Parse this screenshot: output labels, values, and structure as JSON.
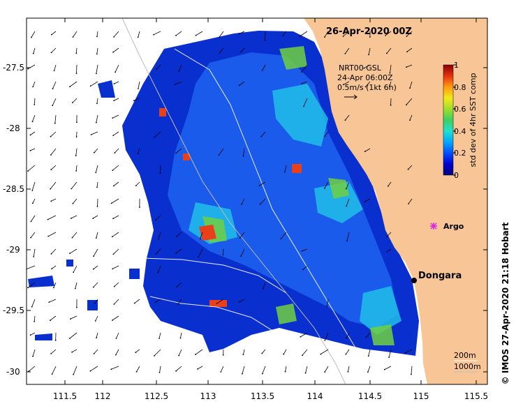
{
  "title": "26-Apr-2020 00Z",
  "legend": {
    "line1": "NRT00 GSL",
    "line2": "24-Apr 06:00Z",
    "line3": "0.5m/s (1kt 6h)"
  },
  "colorbar": {
    "label": "std dev of 4hr SST comp",
    "ticks": [
      "0",
      "0.2",
      "0.4",
      "0.6",
      "0.8",
      "1"
    ],
    "colors": [
      "#00007a",
      "#0000d0",
      "#0050ff",
      "#00a8ff",
      "#20e0d0",
      "#3cd060",
      "#9ee02a",
      "#f2ea18",
      "#ff9a10",
      "#e83010",
      "#8a0000"
    ]
  },
  "x_ticks": [
    "111.5",
    "112",
    "112.5",
    "113",
    "113.5",
    "114",
    "114.5",
    "115",
    "115.5"
  ],
  "y_ticks": [
    "-27.5",
    "-28",
    "-28.5",
    "-29",
    "-29.5",
    "-30"
  ],
  "places": {
    "dongara": "Dongara",
    "argo": "Argo"
  },
  "depth_legend": {
    "line1": "200m",
    "line2": "1000m"
  },
  "credit": "© IMOS 27-Apr-2020 21:18 Hobart",
  "colors": {
    "land": "#f7c596",
    "ocean_blank": "#ffffff",
    "dongara_dot": "#000000",
    "argo_marker": "#e020e0"
  }
}
